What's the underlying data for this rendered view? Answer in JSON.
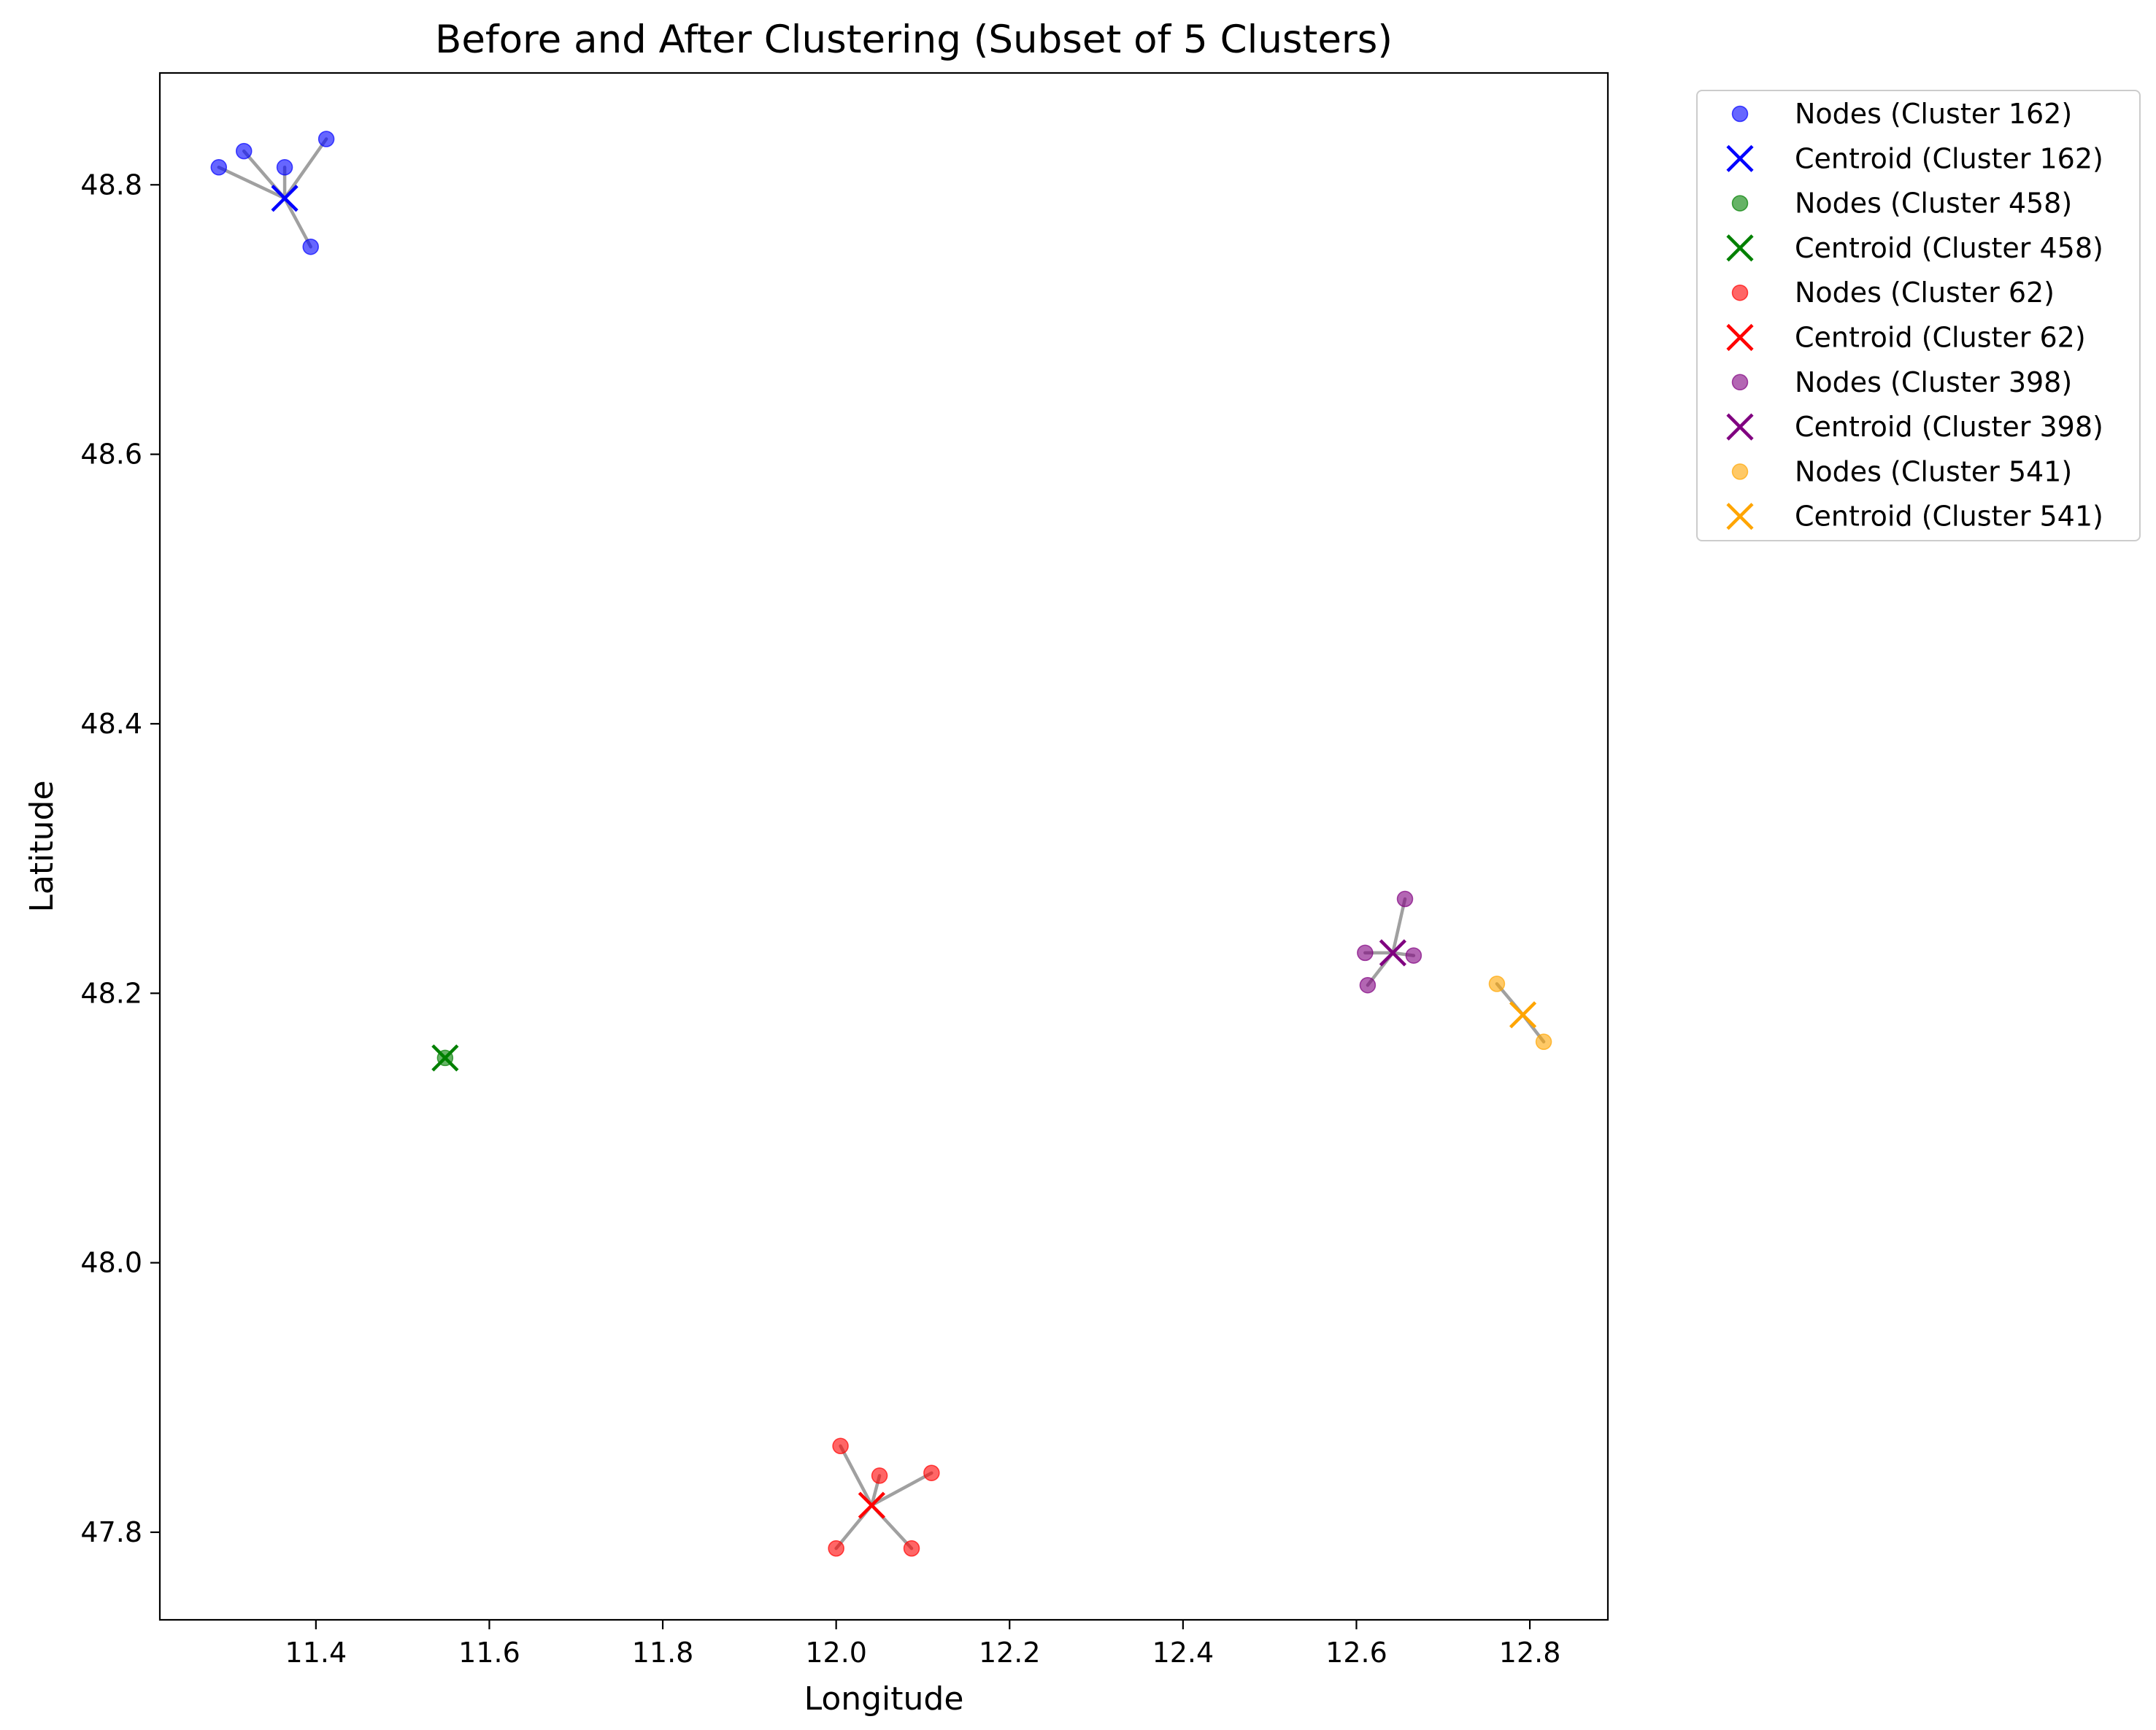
{
  "chart_data": {
    "type": "scatter",
    "title": "Before and After Clustering (Subset of 5 Clusters)",
    "xlabel": "Longitude",
    "ylabel": "Latitude",
    "xlim": [
      11.22,
      12.89
    ],
    "ylim": [
      47.735,
      48.883
    ],
    "xticks": [
      11.4,
      11.6,
      11.8,
      12.0,
      12.2,
      12.4,
      12.6,
      12.8
    ],
    "xtick_labels": [
      "11.4",
      "11.6",
      "11.8",
      "12.0",
      "12.2",
      "12.4",
      "12.6",
      "12.8"
    ],
    "yticks": [
      47.8,
      48.0,
      48.2,
      48.4,
      48.6,
      48.8
    ],
    "ytick_labels": [
      "47.8",
      "48.0",
      "48.2",
      "48.4",
      "48.6",
      "48.8"
    ],
    "grid": false,
    "legend_position": "outside-top-right",
    "line_color": "#a0a0a0",
    "clusters": [
      {
        "id": "162",
        "color": "#0000ff",
        "node_label": "Nodes (Cluster 162)",
        "centroid_label": "Centroid (Cluster 162)",
        "centroid": [
          11.364,
          48.79
        ],
        "nodes": [
          [
            11.288,
            48.813
          ],
          [
            11.317,
            48.825
          ],
          [
            11.364,
            48.813
          ],
          [
            11.412,
            48.834
          ],
          [
            11.394,
            48.754
          ]
        ]
      },
      {
        "id": "458",
        "color": "#008000",
        "node_label": "Nodes (Cluster 458)",
        "centroid_label": "Centroid (Cluster 458)",
        "centroid": [
          11.549,
          48.152
        ],
        "nodes": [
          [
            11.549,
            48.152
          ]
        ]
      },
      {
        "id": "62",
        "color": "#ff0000",
        "node_label": "Nodes (Cluster 62)",
        "centroid_label": "Centroid (Cluster 62)",
        "centroid": [
          12.041,
          47.82
        ],
        "nodes": [
          [
            12.005,
            47.864
          ],
          [
            12.05,
            47.842
          ],
          [
            12.11,
            47.844
          ],
          [
            12.0,
            47.788
          ],
          [
            12.087,
            47.788
          ]
        ]
      },
      {
        "id": "398",
        "color": "#800080",
        "node_label": "Nodes (Cluster 398)",
        "centroid_label": "Centroid (Cluster 398)",
        "centroid": [
          12.642,
          48.23
        ],
        "nodes": [
          [
            12.656,
            48.27
          ],
          [
            12.61,
            48.23
          ],
          [
            12.666,
            48.228
          ],
          [
            12.613,
            48.206
          ]
        ]
      },
      {
        "id": "541",
        "color": "#ffa500",
        "node_label": "Nodes (Cluster 541)",
        "centroid_label": "Centroid (Cluster 541)",
        "centroid": [
          12.792,
          48.184
        ],
        "nodes": [
          [
            12.762,
            48.207
          ],
          [
            12.816,
            48.164
          ]
        ]
      }
    ]
  }
}
